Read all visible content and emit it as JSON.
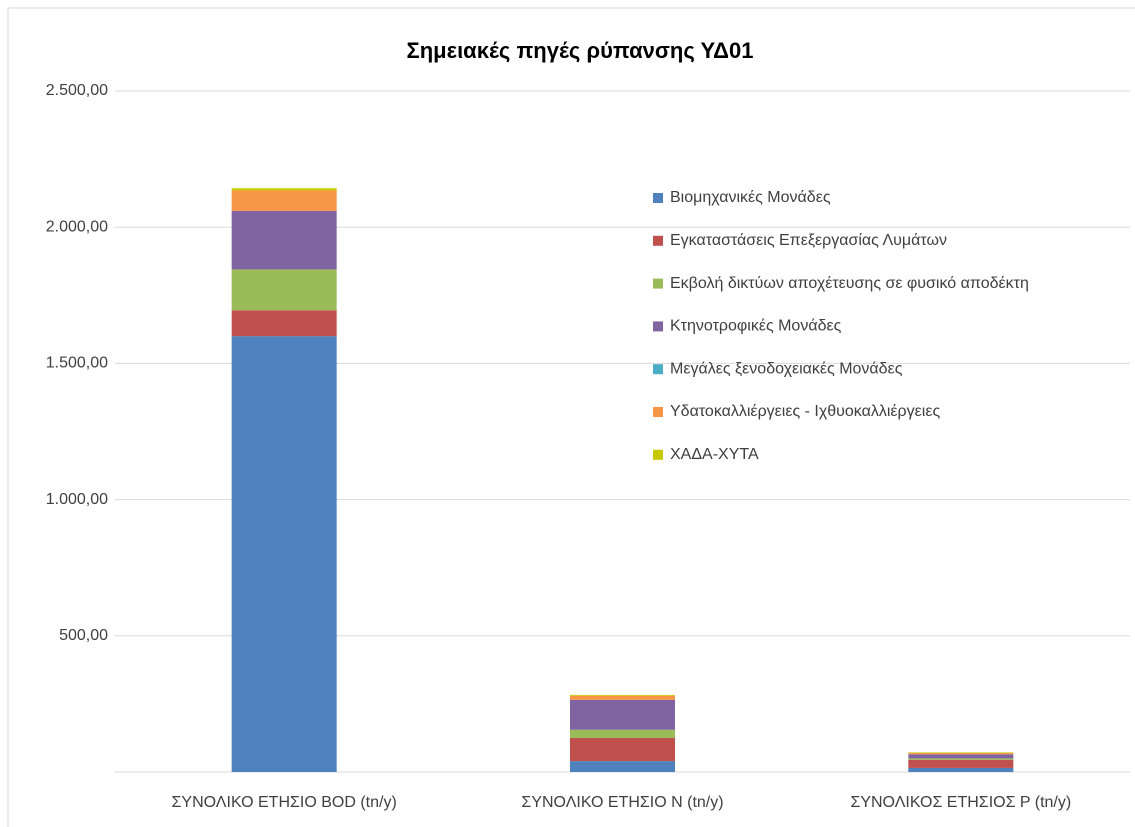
{
  "chart_data": {
    "type": "bar",
    "stacked": true,
    "title": "Σημειακές πηγές ρύπανσης ΥΔ01",
    "categories": [
      "ΣΥΝΟΛΙΚΟ ΕΤΗΣΙΟ BOD (tn/y)",
      "ΣΥΝΟΛΙΚΟ ΕΤΗΣΙΟ N (tn/y)",
      "ΣΥΝΟΛΙΚΟΣ ΕΤΗΣΙΟΣ P (tn/y)"
    ],
    "series": [
      {
        "name": "Βιομηχανικές Μονάδες",
        "color": "#4f81bd",
        "values": [
          1600,
          40,
          15
        ]
      },
      {
        "name": "Εγκαταστάσεις Επεξεργασίας Λυμάτων",
        "color": "#c0504d",
        "values": [
          95,
          85,
          30
        ]
      },
      {
        "name": "Εκβολή δικτύων αποχέτευσης σε φυσικό αποδέκτη",
        "color": "#9bbb59",
        "values": [
          150,
          30,
          5
        ]
      },
      {
        "name": "Κτηνοτροφικές Μονάδες",
        "color": "#8064a2",
        "values": [
          215,
          110,
          15
        ]
      },
      {
        "name": "Μεγάλες ξενοδοχειακές Μονάδες",
        "color": "#4bacc6",
        "values": [
          0,
          0,
          0
        ]
      },
      {
        "name": "Υδατοκαλλιέργειες - Ιχθυοκαλλιέργειες",
        "color": "#f79646",
        "values": [
          75,
          15,
          5
        ]
      },
      {
        "name": "ΧΑΔΑ-ΧΥΤΑ",
        "color": "#c8c800",
        "values": [
          8,
          3,
          2
        ]
      }
    ],
    "ylim": [
      0,
      2500
    ],
    "yticks": [
      {
        "value": 500,
        "label": "500,00"
      },
      {
        "value": 1000,
        "label": "1.000,00"
      },
      {
        "value": 1500,
        "label": "1.500,00"
      },
      {
        "value": 2000,
        "label": "2.000,00"
      },
      {
        "value": 2500,
        "label": "2.500,00"
      }
    ],
    "grid": true,
    "legend": "right"
  }
}
